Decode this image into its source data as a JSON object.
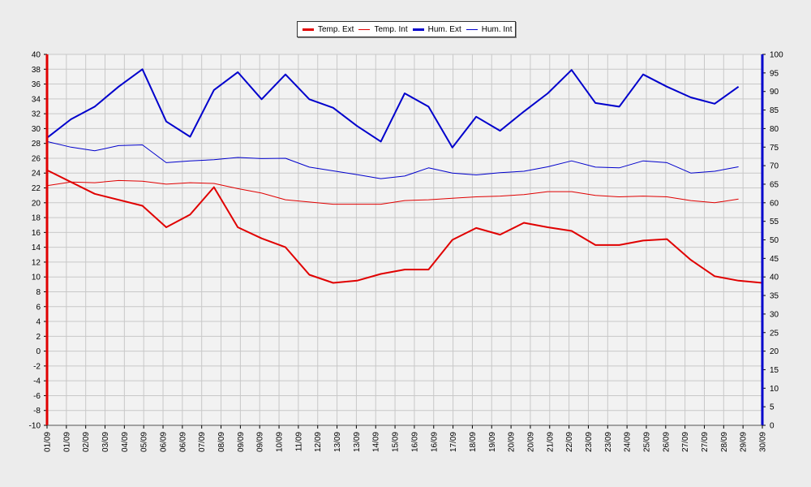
{
  "chart_data": {
    "type": "line",
    "categories": [
      "01/09",
      "01/09",
      "02/09",
      "03/09",
      "04/09",
      "05/09",
      "06/09",
      "06/09",
      "07/09",
      "08/09",
      "09/09",
      "09/09",
      "10/09",
      "11/09",
      "12/09",
      "13/09",
      "13/09",
      "14/09",
      "15/09",
      "16/09",
      "16/09",
      "17/09",
      "18/09",
      "19/09",
      "20/09",
      "20/09",
      "21/09",
      "22/09",
      "23/09",
      "23/09",
      "24/09",
      "25/09",
      "26/09",
      "27/09",
      "27/09",
      "28/09",
      "29/09",
      "30/09"
    ],
    "y_left": {
      "ticks": [
        40,
        38,
        36,
        34,
        32,
        30,
        28,
        26,
        24,
        22,
        20,
        18,
        16,
        14,
        12,
        10,
        8,
        6,
        4,
        2,
        0,
        -2,
        -4,
        -6,
        -8,
        -10
      ],
      "min": -10,
      "max": 40
    },
    "y_right": {
      "ticks": [
        100,
        95,
        90,
        85,
        80,
        75,
        70,
        65,
        60,
        55,
        50,
        45,
        40,
        35,
        30,
        25,
        20,
        15,
        10,
        5,
        0
      ],
      "min": 0,
      "max": 100
    },
    "grid": true,
    "legend_position": "top-center",
    "series": [
      {
        "name": "Temp. Ext",
        "axis": "left",
        "color": "#e00000",
        "width": 2,
        "points": [
          [
            0,
            24.4
          ],
          [
            2,
            21.2
          ],
          [
            4,
            19.6
          ],
          [
            5,
            16.7
          ],
          [
            6,
            18.4
          ],
          [
            7,
            22.1
          ],
          [
            8,
            16.7
          ],
          [
            9,
            15.2
          ],
          [
            10,
            14
          ],
          [
            11,
            10.3
          ],
          [
            12,
            9.2
          ],
          [
            13,
            9.5
          ],
          [
            14,
            10.4
          ],
          [
            15,
            11
          ],
          [
            16,
            11
          ],
          [
            17,
            15
          ],
          [
            18,
            16.6
          ],
          [
            19,
            15.7
          ],
          [
            20,
            17.3
          ],
          [
            21,
            16.7
          ],
          [
            22,
            16.2
          ],
          [
            23,
            14.3
          ],
          [
            24,
            14.3
          ],
          [
            25,
            14.9
          ],
          [
            26,
            15.1
          ],
          [
            27,
            12.3
          ],
          [
            28,
            10.1
          ],
          [
            29,
            9.5
          ],
          [
            30,
            9.2
          ]
        ]
      },
      {
        "name": "Temp. Int",
        "axis": "left",
        "color": "#e00000",
        "width": 1,
        "points": [
          [
            0,
            22.3
          ],
          [
            1,
            22.8
          ],
          [
            2,
            22.7
          ],
          [
            3,
            23
          ],
          [
            4,
            22.9
          ],
          [
            5,
            22.5
          ],
          [
            6,
            22.7
          ],
          [
            7,
            22.6
          ],
          [
            8,
            21.9
          ],
          [
            9,
            21.3
          ],
          [
            10,
            20.4
          ],
          [
            11,
            20.1
          ],
          [
            12,
            19.8
          ],
          [
            13,
            19.8
          ],
          [
            14,
            19.8
          ],
          [
            15,
            20.3
          ],
          [
            16,
            20.4
          ],
          [
            17,
            20.6
          ],
          [
            18,
            20.8
          ],
          [
            19,
            20.9
          ],
          [
            20,
            21.1
          ],
          [
            21,
            21.5
          ],
          [
            22,
            21.5
          ],
          [
            23,
            21
          ],
          [
            24,
            20.8
          ],
          [
            25,
            20.9
          ],
          [
            26,
            20.8
          ],
          [
            27,
            20.3
          ],
          [
            28,
            20
          ],
          [
            29,
            20.5
          ]
        ]
      },
      {
        "name": "Hum. Ext",
        "axis": "right",
        "color": "#0000cc",
        "width": 2,
        "points": [
          [
            0,
            77.5
          ],
          [
            1,
            82.5
          ],
          [
            2,
            85.9
          ],
          [
            3,
            91.3
          ],
          [
            4,
            96
          ],
          [
            5,
            81.9
          ],
          [
            6,
            77.8
          ],
          [
            7,
            90.4
          ],
          [
            8,
            95.2
          ],
          [
            9,
            87.9
          ],
          [
            10,
            94.6
          ],
          [
            11,
            87.9
          ],
          [
            12,
            85.6
          ],
          [
            13,
            80.7
          ],
          [
            14,
            76.5
          ],
          [
            15,
            89.5
          ],
          [
            16,
            85.9
          ],
          [
            17,
            74.9
          ],
          [
            18,
            83.2
          ],
          [
            19,
            79.4
          ],
          [
            20,
            84.6
          ],
          [
            21,
            89.5
          ],
          [
            22,
            95.8
          ],
          [
            23,
            86.9
          ],
          [
            24,
            85.9
          ],
          [
            25,
            94.6
          ],
          [
            26,
            91.3
          ],
          [
            27,
            88.4
          ],
          [
            28,
            86.7
          ],
          [
            29,
            91.3
          ]
        ]
      },
      {
        "name": "Hum. Int",
        "axis": "right",
        "color": "#0000cc",
        "width": 1,
        "points": [
          [
            0,
            76.5
          ],
          [
            1,
            75
          ],
          [
            2,
            74
          ],
          [
            3,
            75.4
          ],
          [
            4,
            75.6
          ],
          [
            5,
            70.8
          ],
          [
            6,
            71.3
          ],
          [
            7,
            71.6
          ],
          [
            8,
            72.2
          ],
          [
            9,
            71.9
          ],
          [
            10,
            72
          ],
          [
            11,
            69.6
          ],
          [
            12,
            68.6
          ],
          [
            13,
            67.6
          ],
          [
            14,
            66.5
          ],
          [
            15,
            67.2
          ],
          [
            16,
            69.4
          ],
          [
            17,
            68
          ],
          [
            18,
            67.5
          ],
          [
            19,
            68.1
          ],
          [
            20,
            68.5
          ],
          [
            21,
            69.7
          ],
          [
            22,
            71.3
          ],
          [
            23,
            69.6
          ],
          [
            24,
            69.4
          ],
          [
            25,
            71.3
          ],
          [
            26,
            70.8
          ],
          [
            27,
            68
          ],
          [
            28,
            68.5
          ],
          [
            29,
            69.7
          ]
        ]
      }
    ]
  }
}
